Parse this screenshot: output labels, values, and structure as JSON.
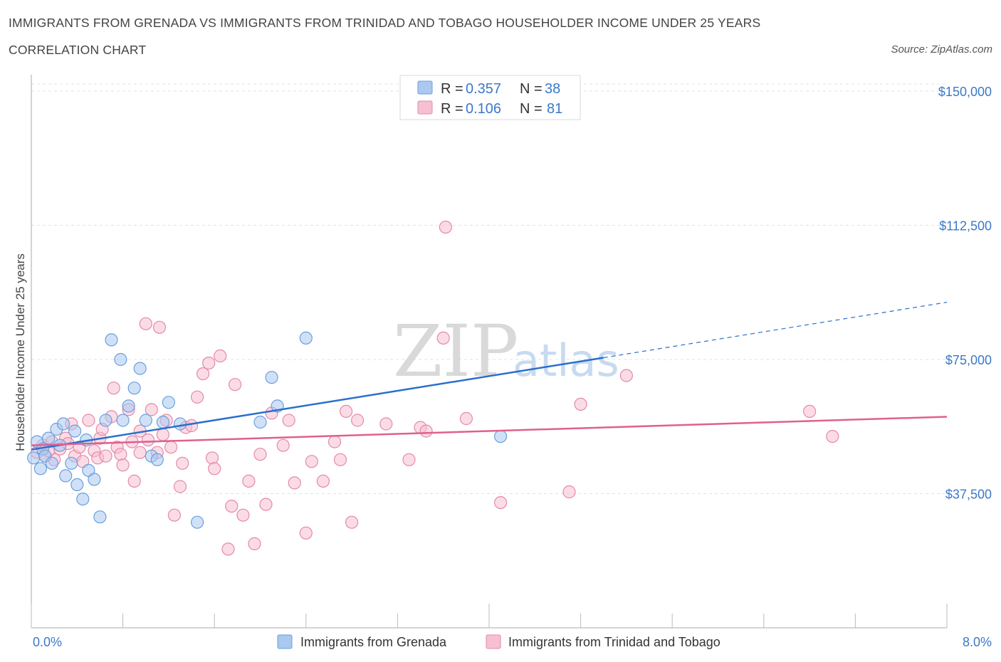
{
  "header": {
    "title": "IMMIGRANTS FROM GRENADA VS IMMIGRANTS FROM TRINIDAD AND TOBAGO HOUSEHOLDER INCOME UNDER 25 YEARS",
    "subtitle": "CORRELATION CHART",
    "source": "Source: ZipAtlas.com"
  },
  "watermark": {
    "zip": "ZIP",
    "atlas": "atlas"
  },
  "colors": {
    "blue_fill": "#aac8f0",
    "blue_stroke": "#6a9fdc",
    "blue_line": "#2a6fcc",
    "pink_fill": "#f7bfd2",
    "pink_stroke": "#e28aa8",
    "pink_line": "#e0608f",
    "grid": "#dde2ea",
    "axis_label": "#3c78c8"
  },
  "legend": {
    "rows": [
      {
        "r_label": "R =",
        "r_value": "0.357",
        "n_label": "N =",
        "n_value": "38",
        "series": "blue"
      },
      {
        "r_label": "R =",
        "r_value": "0.106",
        "n_label": "N =",
        "n_value": "81",
        "series": "pink"
      }
    ]
  },
  "chart_data": {
    "type": "scatter",
    "title": "IMMIGRANTS FROM GRENADA VS IMMIGRANTS FROM TRINIDAD AND TOBAGO HOUSEHOLDER INCOME UNDER 25 YEARS",
    "xlabel": "",
    "ylabel": "Householder Income Under 25 years",
    "xlim": [
      0,
      8
    ],
    "ylim": [
      0,
      152000
    ],
    "x_tick_labels": [
      "0.0%",
      "8.0%"
    ],
    "y_ticks": [
      37500,
      75000,
      112500,
      150000
    ],
    "y_tick_labels": [
      "$37,500",
      "$75,000",
      "$112,500",
      "$150,000"
    ],
    "grid": true,
    "legend_position": "top-center",
    "series": [
      {
        "name": "Immigrants from Grenada",
        "color": "blue",
        "r": 0.357,
        "n": 38,
        "trend": {
          "x0": 0.0,
          "y0": 49800,
          "x1": 5.0,
          "y1": 75500,
          "dashed_to_x": 8.0,
          "dashed_to_y": 91000
        },
        "points": [
          [
            0.02,
            47500
          ],
          [
            0.05,
            52000
          ],
          [
            0.1,
            50000
          ],
          [
            0.12,
            48000
          ],
          [
            0.15,
            53000
          ],
          [
            0.18,
            46000
          ],
          [
            0.22,
            55500
          ],
          [
            0.25,
            51000
          ],
          [
            0.28,
            57000
          ],
          [
            0.3,
            42500
          ],
          [
            0.35,
            46000
          ],
          [
            0.38,
            55000
          ],
          [
            0.4,
            40000
          ],
          [
            0.45,
            36000
          ],
          [
            0.5,
            44000
          ],
          [
            0.55,
            41500
          ],
          [
            0.6,
            31000
          ],
          [
            0.7,
            80500
          ],
          [
            0.78,
            75000
          ],
          [
            0.8,
            58000
          ],
          [
            0.85,
            62000
          ],
          [
            0.9,
            67000
          ],
          [
            0.95,
            72500
          ],
          [
            1.0,
            58000
          ],
          [
            1.05,
            48000
          ],
          [
            1.1,
            47000
          ],
          [
            1.15,
            57500
          ],
          [
            1.2,
            63000
          ],
          [
            1.3,
            57000
          ],
          [
            1.45,
            29500
          ],
          [
            2.0,
            57500
          ],
          [
            2.1,
            70000
          ],
          [
            2.15,
            62000
          ],
          [
            2.4,
            81000
          ],
          [
            4.1,
            53500
          ],
          [
            0.65,
            58000
          ],
          [
            0.48,
            52500
          ],
          [
            0.08,
            44500
          ]
        ]
      },
      {
        "name": "Immigrants from Trinidad and Tobago",
        "color": "pink",
        "r": 0.106,
        "n": 81,
        "trend": {
          "x0": 0.0,
          "y0": 51000,
          "x1": 8.0,
          "y1": 59000
        },
        "points": [
          [
            0.05,
            49000
          ],
          [
            0.1,
            51000
          ],
          [
            0.12,
            48000
          ],
          [
            0.18,
            52000
          ],
          [
            0.2,
            47000
          ],
          [
            0.25,
            50000
          ],
          [
            0.3,
            53000
          ],
          [
            0.35,
            57000
          ],
          [
            0.38,
            48000
          ],
          [
            0.42,
            50500
          ],
          [
            0.45,
            46500
          ],
          [
            0.5,
            58000
          ],
          [
            0.55,
            49500
          ],
          [
            0.58,
            47500
          ],
          [
            0.6,
            53000
          ],
          [
            0.65,
            48000
          ],
          [
            0.7,
            59000
          ],
          [
            0.72,
            67000
          ],
          [
            0.75,
            50500
          ],
          [
            0.78,
            48500
          ],
          [
            0.8,
            45500
          ],
          [
            0.85,
            61000
          ],
          [
            0.88,
            52000
          ],
          [
            0.9,
            41000
          ],
          [
            0.95,
            55000
          ],
          [
            1.0,
            85000
          ],
          [
            1.02,
            52500
          ],
          [
            1.05,
            61000
          ],
          [
            1.1,
            49000
          ],
          [
            1.12,
            84000
          ],
          [
            1.15,
            54000
          ],
          [
            1.18,
            58000
          ],
          [
            1.22,
            50500
          ],
          [
            1.25,
            31500
          ],
          [
            1.3,
            39500
          ],
          [
            1.32,
            46000
          ],
          [
            1.35,
            56000
          ],
          [
            1.4,
            56500
          ],
          [
            1.45,
            64500
          ],
          [
            1.5,
            71000
          ],
          [
            1.55,
            74000
          ],
          [
            1.58,
            47500
          ],
          [
            1.6,
            44500
          ],
          [
            1.65,
            76000
          ],
          [
            1.72,
            22000
          ],
          [
            1.75,
            34000
          ],
          [
            1.78,
            68000
          ],
          [
            1.85,
            31500
          ],
          [
            1.9,
            41000
          ],
          [
            1.95,
            23500
          ],
          [
            2.0,
            48500
          ],
          [
            2.05,
            34500
          ],
          [
            2.1,
            60000
          ],
          [
            2.2,
            51000
          ],
          [
            2.25,
            58000
          ],
          [
            2.3,
            40500
          ],
          [
            2.4,
            26500
          ],
          [
            2.45,
            46500
          ],
          [
            2.55,
            41000
          ],
          [
            2.65,
            52000
          ],
          [
            2.7,
            47000
          ],
          [
            2.75,
            60500
          ],
          [
            2.8,
            29500
          ],
          [
            2.85,
            58000
          ],
          [
            3.1,
            57000
          ],
          [
            3.3,
            47000
          ],
          [
            3.4,
            56000
          ],
          [
            3.45,
            55000
          ],
          [
            3.6,
            81000
          ],
          [
            3.62,
            112000
          ],
          [
            3.8,
            58500
          ],
          [
            4.1,
            35000
          ],
          [
            4.7,
            38000
          ],
          [
            4.8,
            62500
          ],
          [
            5.2,
            70500
          ],
          [
            6.8,
            60500
          ],
          [
            7.0,
            53500
          ],
          [
            0.15,
            49500
          ],
          [
            0.32,
            51500
          ],
          [
            0.62,
            55500
          ],
          [
            0.95,
            49000
          ]
        ]
      }
    ]
  },
  "bottom_legend": {
    "items": [
      {
        "label": "Immigrants from Grenada",
        "series": "blue"
      },
      {
        "label": "Immigrants from Trinidad and Tobago",
        "series": "pink"
      }
    ]
  }
}
